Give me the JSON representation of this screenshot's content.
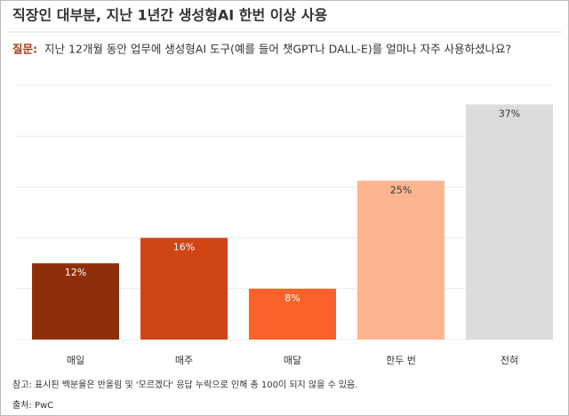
{
  "chart_data": {
    "type": "bar",
    "title": "직장인 대부분, 지난 1년간 생성형AI 한번 이상 사용",
    "question_label": "질문:",
    "subtitle": "지난 12개월 동안 업무에 생성형AI 도구(예를 들어 챗GPT나 DALL-E)를 얼마나 자주 사용하셨나요?",
    "categories": [
      "매일",
      "매주",
      "매달",
      "한두 번",
      "전혀"
    ],
    "values": [
      12,
      16,
      8,
      25,
      37
    ],
    "value_labels": [
      "12%",
      "16%",
      "8%",
      "25%",
      "37%"
    ],
    "colors": [
      "#8f2f0a",
      "#cf4515",
      "#f96228",
      "#fdb591",
      "#dcdcdc"
    ],
    "ylim": [
      0,
      40
    ],
    "yticks": [
      0,
      8,
      16,
      24,
      32,
      40
    ],
    "grid": true,
    "note": "참고: 표시된 백분율은 반올림 및 '모르겠다' 응답 누락으로 인해 총 100이 되지 않을 수 있음.",
    "source": "출처: PwC"
  }
}
